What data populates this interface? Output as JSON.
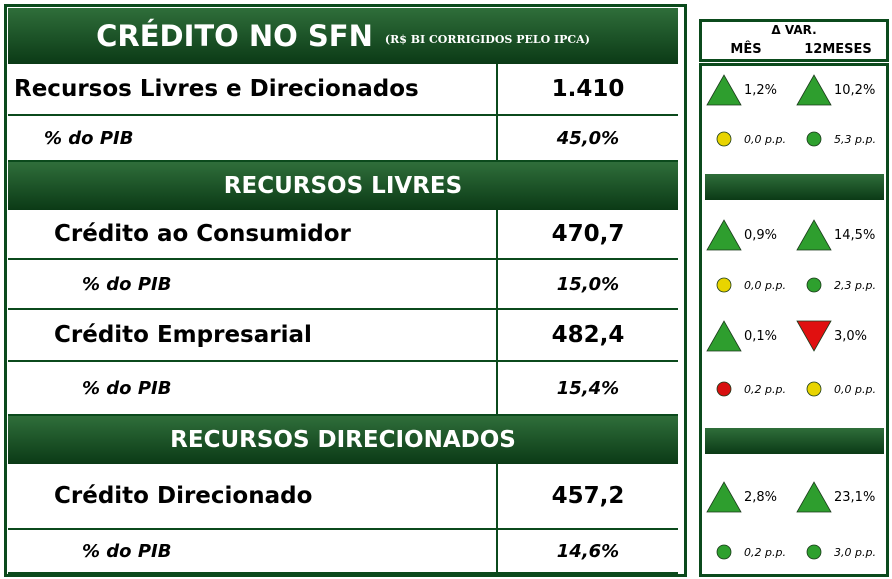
{
  "header": {
    "title": "CRÉDITO NO SFN",
    "subtitle": "(R$ BI CORRIGIDOS PELO IPCA)"
  },
  "variation_header": {
    "title": "Δ VAR.",
    "columns": [
      "MÊS",
      "12MESES"
    ]
  },
  "rows": [
    {
      "label": "Recursos Livres e Direcionados",
      "value": "1.410",
      "month": {
        "text": "1,2%",
        "shape": "triangle-up",
        "color": "#2e9e2e"
      },
      "year": {
        "text": "10,2%",
        "shape": "triangle-up",
        "color": "#2e9e2e"
      }
    },
    {
      "label": "% do PIB",
      "value": "45,0%",
      "month": {
        "text": "0,0 p.p.",
        "shape": "dot",
        "color": "#e8d400"
      },
      "year": {
        "text": "5,3 p.p.",
        "shape": "dot",
        "color": "#2ea02e"
      }
    },
    {
      "label": "RECURSOS LIVRES"
    },
    {
      "label": "Crédito ao Consumidor",
      "value": "470,7",
      "month": {
        "text": "0,9%",
        "shape": "triangle-up",
        "color": "#2e9e2e"
      },
      "year": {
        "text": "14,5%",
        "shape": "triangle-up",
        "color": "#2e9e2e"
      }
    },
    {
      "label": "% do PIB",
      "value": "15,0%",
      "month": {
        "text": "0,0 p.p.",
        "shape": "dot",
        "color": "#e8d400"
      },
      "year": {
        "text": "2,3 p.p.",
        "shape": "dot",
        "color": "#2ea02e"
      }
    },
    {
      "label": "Crédito Empresarial",
      "value": "482,4",
      "month": {
        "text": "0,1%",
        "shape": "triangle-up",
        "color": "#2e9e2e"
      },
      "year": {
        "text": "3,0%",
        "shape": "triangle-down",
        "color": "#e01010"
      }
    },
    {
      "label": "% do PIB",
      "value": "15,4%",
      "month": {
        "text": "0,2 p.p.",
        "shape": "dot",
        "color": "#d81010"
      },
      "year": {
        "text": "0,0 p.p.",
        "shape": "dot",
        "color": "#e8d400"
      }
    },
    {
      "label": "RECURSOS DIRECIONADOS"
    },
    {
      "label": "Crédito Direcionado",
      "value": "457,2",
      "month": {
        "text": "2,8%",
        "shape": "triangle-up",
        "color": "#2e9e2e"
      },
      "year": {
        "text": "23,1%",
        "shape": "triangle-up",
        "color": "#2e9e2e"
      }
    },
    {
      "label": "% do PIB",
      "value": "14,6%",
      "month": {
        "text": "0,2 p.p.",
        "shape": "dot",
        "color": "#2ea02e"
      },
      "year": {
        "text": "3,0 p.p.",
        "shape": "dot",
        "color": "#2ea02e"
      }
    }
  ]
}
